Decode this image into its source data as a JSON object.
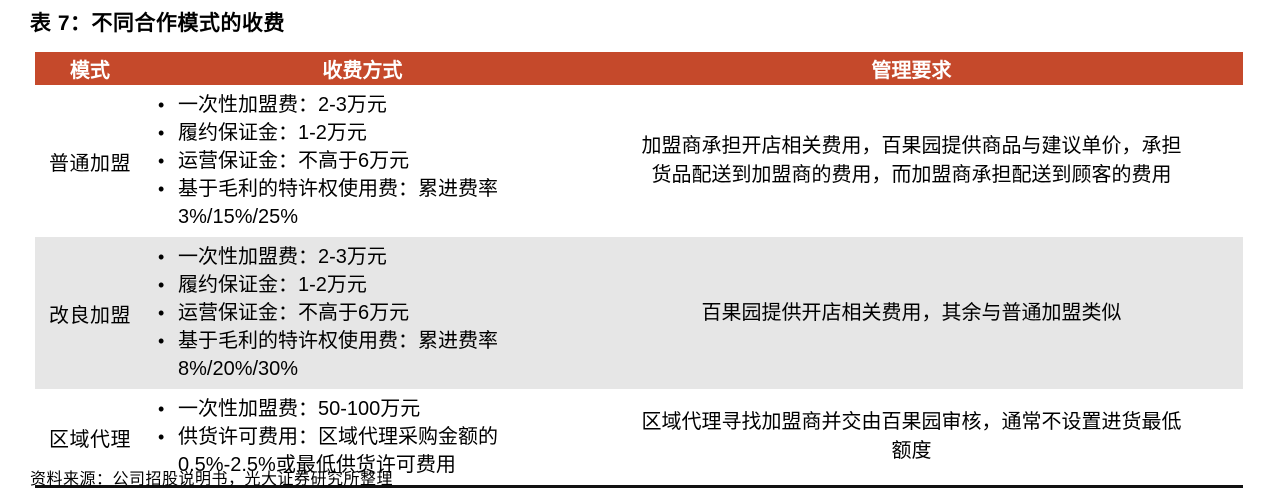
{
  "title": "表 7：不同合作模式的收费",
  "table": {
    "headers": [
      "模式",
      "收费方式",
      "管理要求"
    ],
    "rows": [
      {
        "mode": "普通加盟",
        "fees": [
          "一次性加盟费：2-3万元",
          "履约保证金：1-2万元",
          "运营保证金：不高于6万元",
          "基于毛利的特许权使用费：累进费率\n3%/15%/25%"
        ],
        "management": "加盟商承担开店相关费用，百果园提供商品与建议单价，承担\n货品配送到加盟商的费用，而加盟商承担配送到顾客的费用"
      },
      {
        "mode": "改良加盟",
        "fees": [
          "一次性加盟费：2-3万元",
          "履约保证金：1-2万元",
          "运营保证金：不高于6万元",
          "基于毛利的特许权使用费：累进费率\n8%/20%/30%"
        ],
        "management": "百果园提供开店相关费用，其余与普通加盟类似"
      },
      {
        "mode": "区域代理",
        "fees": [
          "一次性加盟费：50-100万元",
          "供货许可费用：区域代理采购金额的\n0.5%-2.5%或最低供货许可费用"
        ],
        "management": "区域代理寻找加盟商并交由百果园审核，通常不设置进货最低\n额度"
      }
    ]
  },
  "source": "资料来源：公司招股说明书，光大证券研究所整理",
  "colors": {
    "header_bg": "#C5492B",
    "alt_row_bg": "#E6E6E6",
    "header_text": "#FFFFFF",
    "text": "#000000"
  }
}
